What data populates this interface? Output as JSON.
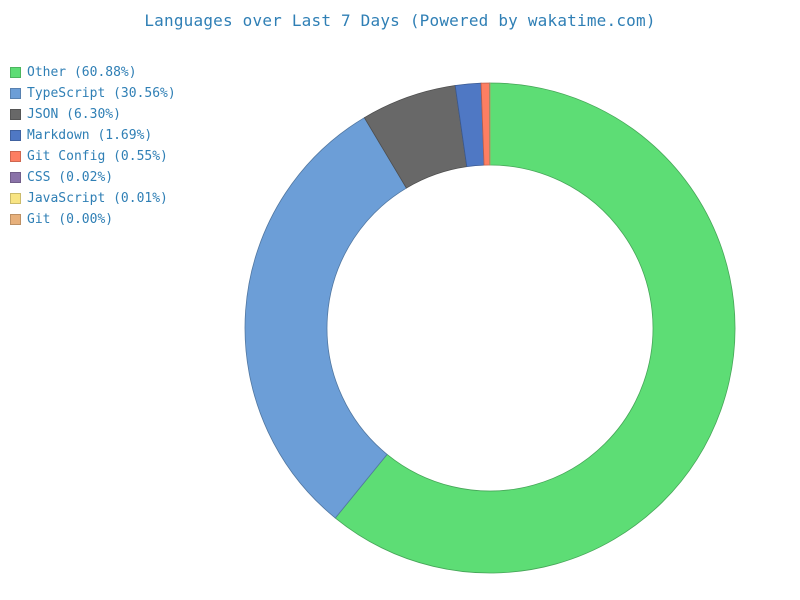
{
  "chart_data": {
    "type": "pie",
    "title": "Languages over Last 7 Days (Powered by wakatime.com)",
    "legend_position": "top-left",
    "slices": [
      {
        "name": "Other",
        "value": 60.88,
        "label": "Other (60.88%)",
        "color": "#5ddd75"
      },
      {
        "name": "TypeScript",
        "value": 30.56,
        "label": "TypeScript (30.56%)",
        "color": "#6c9ed7"
      },
      {
        "name": "JSON",
        "value": 6.3,
        "label": "JSON (6.30%)",
        "color": "#686868"
      },
      {
        "name": "Markdown",
        "value": 1.69,
        "label": "Markdown (1.69%)",
        "color": "#4f78c4"
      },
      {
        "name": "Git Config",
        "value": 0.55,
        "label": "Git Config (0.55%)",
        "color": "#fd7e62"
      },
      {
        "name": "CSS",
        "value": 0.02,
        "label": "CSS (0.02%)",
        "color": "#8a72a8"
      },
      {
        "name": "JavaScript",
        "value": 0.01,
        "label": "JavaScript (0.01%)",
        "color": "#f8e483"
      },
      {
        "name": "Git",
        "value": 0.0,
        "label": "Git (0.00%)",
        "color": "#e7b07b"
      }
    ]
  }
}
